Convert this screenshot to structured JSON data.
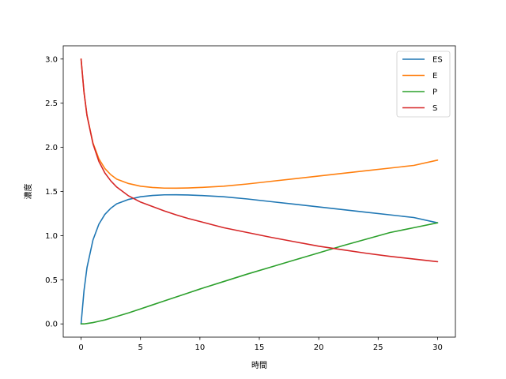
{
  "chart_data": {
    "type": "line",
    "title": "",
    "xlabel": "時間",
    "ylabel": "濃度",
    "xlim": [
      -1.5,
      31.5
    ],
    "ylim": [
      -0.15,
      3.15
    ],
    "xticks": [
      0,
      5,
      10,
      15,
      20,
      25,
      30
    ],
    "yticks": [
      0.0,
      0.5,
      1.0,
      1.5,
      2.0,
      2.5,
      3.0
    ],
    "xtick_labels": [
      "0",
      "5",
      "10",
      "15",
      "20",
      "25",
      "30"
    ],
    "ytick_labels": [
      "0.0",
      "0.5",
      "1.0",
      "1.5",
      "2.0",
      "2.5",
      "3.0"
    ],
    "grid": false,
    "legend_position": "upper-right",
    "x": [
      0,
      0.25,
      0.5,
      1,
      1.5,
      2,
      2.5,
      3,
      4,
      5,
      6,
      7,
      8,
      9,
      10,
      12,
      14,
      16,
      18,
      20,
      22,
      24,
      26,
      28,
      30
    ],
    "series": [
      {
        "name": "ES",
        "color": "#1f77b4",
        "values": [
          0.0,
          0.38,
          0.64,
          0.95,
          1.13,
          1.24,
          1.31,
          1.36,
          1.41,
          1.44,
          1.455,
          1.462,
          1.463,
          1.46,
          1.455,
          1.44,
          1.415,
          1.385,
          1.355,
          1.325,
          1.295,
          1.265,
          1.235,
          1.205,
          1.145
        ]
      },
      {
        "name": "E",
        "color": "#ff7f0e",
        "values": [
          3.0,
          2.62,
          2.36,
          2.05,
          1.87,
          1.76,
          1.69,
          1.64,
          1.59,
          1.56,
          1.545,
          1.538,
          1.537,
          1.54,
          1.545,
          1.56,
          1.585,
          1.615,
          1.645,
          1.675,
          1.705,
          1.735,
          1.765,
          1.795,
          1.855
        ]
      },
      {
        "name": "P",
        "color": "#2ca02c",
        "values": [
          0.0,
          0.0,
          0.005,
          0.015,
          0.03,
          0.045,
          0.065,
          0.085,
          0.125,
          0.17,
          0.215,
          0.26,
          0.305,
          0.35,
          0.395,
          0.48,
          0.565,
          0.645,
          0.725,
          0.805,
          0.885,
          0.96,
          1.035,
          1.09,
          1.145
        ]
      },
      {
        "name": "S",
        "color": "#d62728",
        "values": [
          3.0,
          2.62,
          2.36,
          2.04,
          1.84,
          1.71,
          1.62,
          1.55,
          1.45,
          1.38,
          1.33,
          1.28,
          1.235,
          1.195,
          1.16,
          1.09,
          1.035,
          0.98,
          0.93,
          0.88,
          0.84,
          0.8,
          0.765,
          0.735,
          0.705
        ]
      }
    ]
  }
}
